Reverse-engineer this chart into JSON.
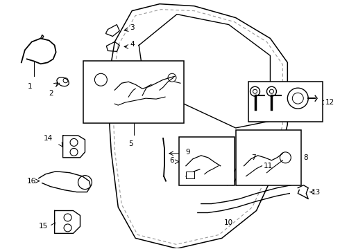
{
  "bg_color": "#ffffff",
  "line_color": "#000000",
  "dashed_color": "#999999",
  "fig_width": 4.9,
  "fig_height": 3.6,
  "dpi": 100
}
